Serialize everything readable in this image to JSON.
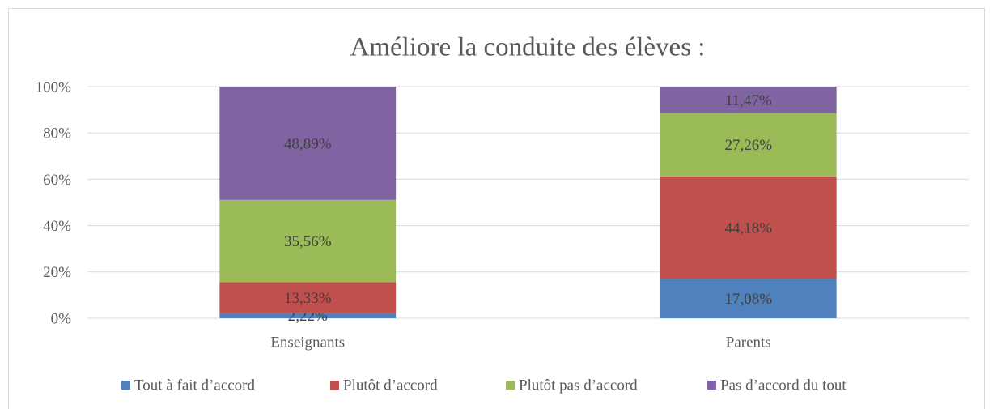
{
  "chart_data": {
    "type": "stacked_bar",
    "title": "Améliore la conduite des élèves :",
    "categories": [
      "Enseignants",
      "Parents"
    ],
    "series": [
      {
        "name": "Tout à fait d’accord",
        "color": "#4f81bd",
        "values": [
          2.22,
          17.08
        ],
        "value_labels": [
          "2,22%",
          "17,08%"
        ]
      },
      {
        "name": "Plutôt d’accord",
        "color": "#c0504d",
        "values": [
          13.33,
          44.18
        ],
        "value_labels": [
          "13,33%",
          "44,18%"
        ]
      },
      {
        "name": "Plutôt pas d’accord",
        "color": "#9bbb59",
        "values": [
          35.56,
          27.26
        ],
        "value_labels": [
          "35,56%",
          "27,26%"
        ]
      },
      {
        "name": "Pas d’accord du tout",
        "color": "#8064a2",
        "values": [
          48.89,
          11.47
        ],
        "value_labels": [
          "48,89%",
          "11,47%"
        ]
      }
    ],
    "ylim": [
      0,
      100
    ],
    "yticks": [
      {
        "value": 0,
        "label": "0%"
      },
      {
        "value": 20,
        "label": "20%"
      },
      {
        "value": 40,
        "label": "40%"
      },
      {
        "value": 60,
        "label": "60%"
      },
      {
        "value": 80,
        "label": "80%"
      },
      {
        "value": 100,
        "label": "100%"
      }
    ],
    "grid": true,
    "legend": "bottom"
  }
}
